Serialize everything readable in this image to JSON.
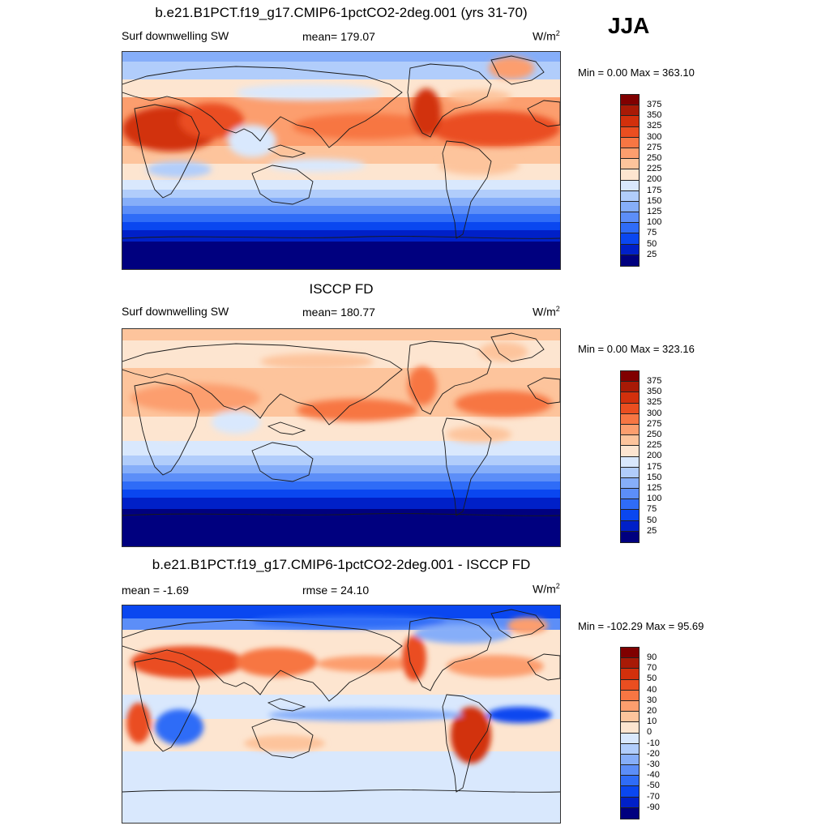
{
  "season": "JJA",
  "colors": {
    "abs_scale": [
      "#00007f",
      "#0020c8",
      "#0a47f0",
      "#2f6cf7",
      "#5c8ef8",
      "#86aef9",
      "#b1cdfb",
      "#d9e8fd",
      "#fde5d0",
      "#fdc49c",
      "#fc9e6e",
      "#f77643",
      "#ea4e20",
      "#d2300c",
      "#a81a06",
      "#800000"
    ],
    "diff_scale": [
      "#00007f",
      "#0020c8",
      "#0a47f0",
      "#2f6cf7",
      "#5c8ef8",
      "#86aef9",
      "#b1cdfb",
      "#d9e8fd",
      "#fde5d0",
      "#fdc49c",
      "#fc9e6e",
      "#f77643",
      "#ea4e20",
      "#d2300c",
      "#a81a06",
      "#800000"
    ],
    "coastline": "#1a1a1a"
  },
  "panels": [
    {
      "title": "b.e21.B1PCT.f19_g17.CMIP6-1pctCO2-2deg.001 (yrs 31-70)",
      "left_label": "Surf downwelling SW",
      "center_label": "mean= 179.07",
      "units_base": "W/m",
      "units_exp": "2",
      "minmax": "Min =   0.00 Max = 363.10",
      "colorbar_labels": [
        "375",
        "350",
        "325",
        "300",
        "275",
        "250",
        "225",
        "200",
        "175",
        "150",
        "125",
        "100",
        "75",
        "50",
        "25"
      ],
      "kind": "model"
    },
    {
      "title": "ISCCP FD",
      "left_label": "Surf downwelling SW",
      "center_label": "mean= 180.77",
      "units_base": "W/m",
      "units_exp": "2",
      "minmax": "Min =   0.00 Max = 323.16",
      "colorbar_labels": [
        "375",
        "350",
        "325",
        "300",
        "275",
        "250",
        "225",
        "200",
        "175",
        "150",
        "125",
        "100",
        "75",
        "50",
        "25"
      ],
      "kind": "obs"
    },
    {
      "title": "b.e21.B1PCT.f19_g17.CMIP6-1pctCO2-2deg.001 - ISCCP FD",
      "left_label": "mean =  -1.69",
      "center_label": "rmse =  24.10",
      "units_base": "W/m",
      "units_exp": "2",
      "minmax": "Min = -102.29 Max =  95.69",
      "colorbar_labels": [
        "90",
        "70",
        "50",
        "40",
        "30",
        "20",
        "10",
        "0",
        "-10",
        "-20",
        "-30",
        "-40",
        "-50",
        "-70",
        "-90"
      ],
      "kind": "diff"
    }
  ]
}
